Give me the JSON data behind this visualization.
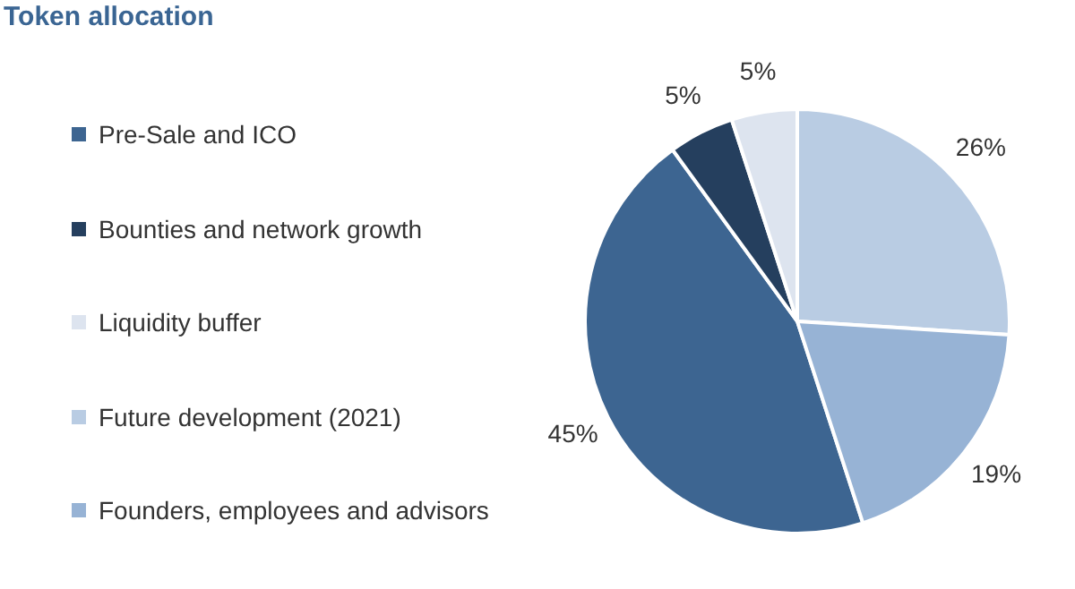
{
  "chart_data": {
    "type": "pie",
    "title": "Token allocation",
    "categories": [
      "Pre-Sale and ICO",
      "Bounties and network growth",
      "Liquidity buffer",
      "Future development (2021)",
      "Founders, employees and advisors"
    ],
    "values": [
      45,
      5,
      5,
      26,
      19
    ],
    "value_labels": [
      "45%",
      "5%",
      "5%",
      "26%",
      "19%"
    ],
    "colors": [
      "#3d6591",
      "#253f5e",
      "#dde4ef",
      "#b9cce3",
      "#97b3d5"
    ],
    "legend": "left"
  }
}
